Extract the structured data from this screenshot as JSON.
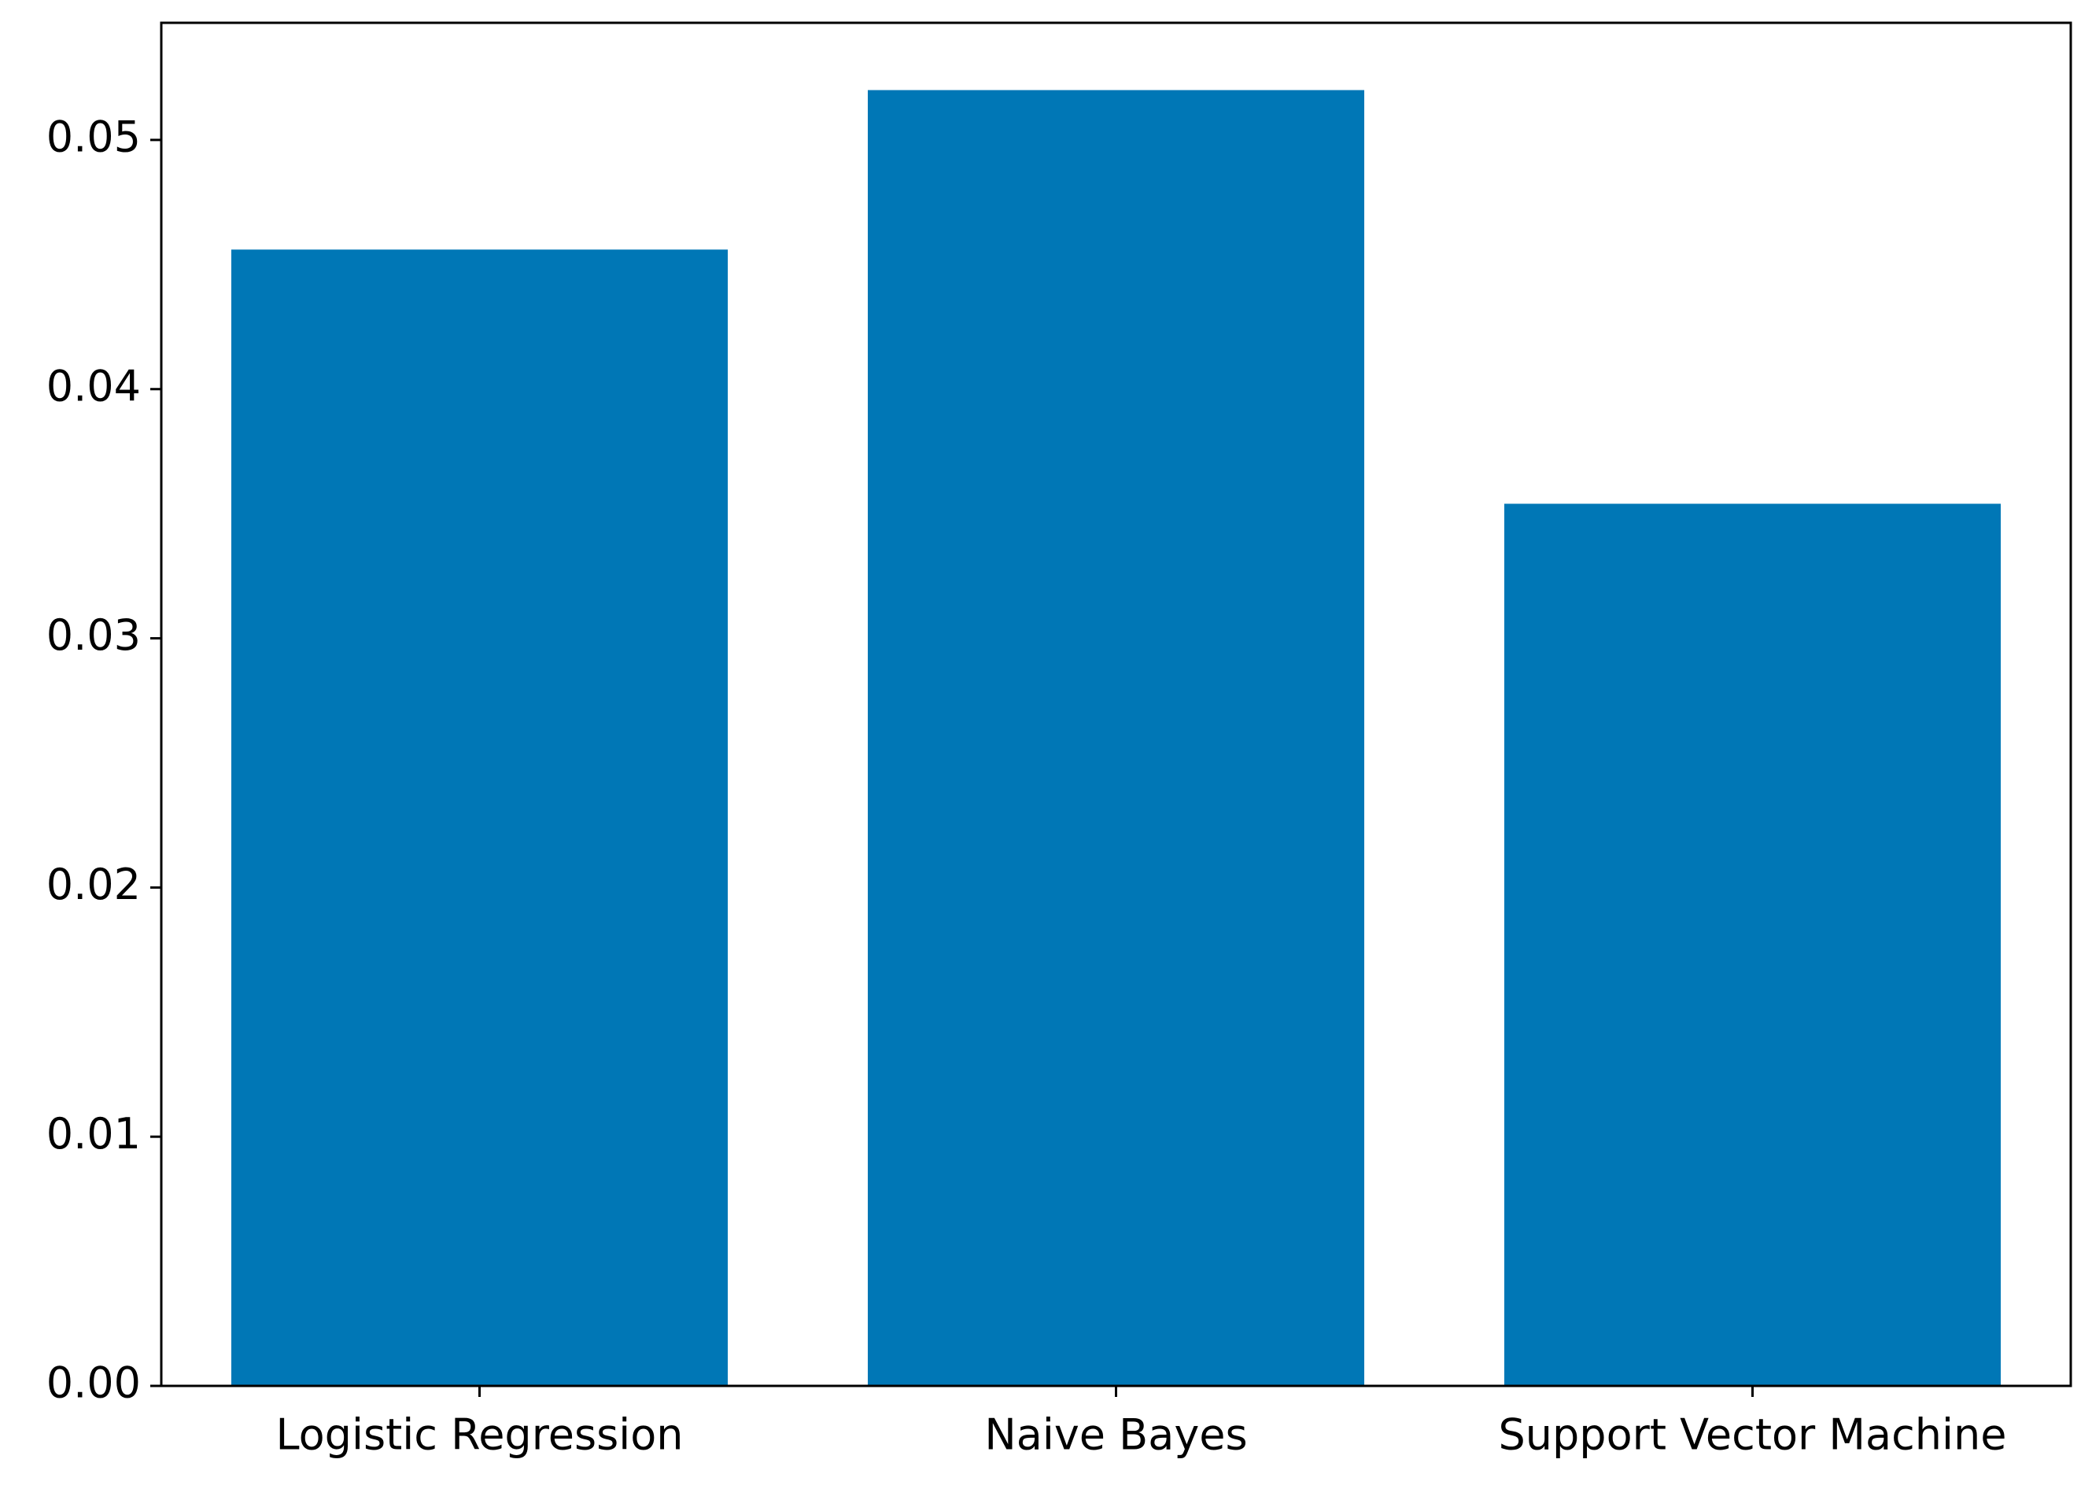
{
  "chart_data": {
    "type": "bar",
    "categories": [
      "Logistic Regression",
      "Naive Bayes",
      "Support Vector Machine"
    ],
    "values": [
      0.0456,
      0.052,
      0.0354
    ],
    "color": "#0077b6",
    "ylim": [
      0,
      0.0547
    ],
    "yticks": [
      {
        "value": 0,
        "label": "0.00"
      },
      {
        "value": 0.01,
        "label": "0.01"
      },
      {
        "value": 0.02,
        "label": "0.02"
      },
      {
        "value": 0.03,
        "label": "0.03"
      },
      {
        "value": 0.04,
        "label": "0.04"
      },
      {
        "value": 0.05,
        "label": "0.05"
      }
    ],
    "grid": false
  }
}
